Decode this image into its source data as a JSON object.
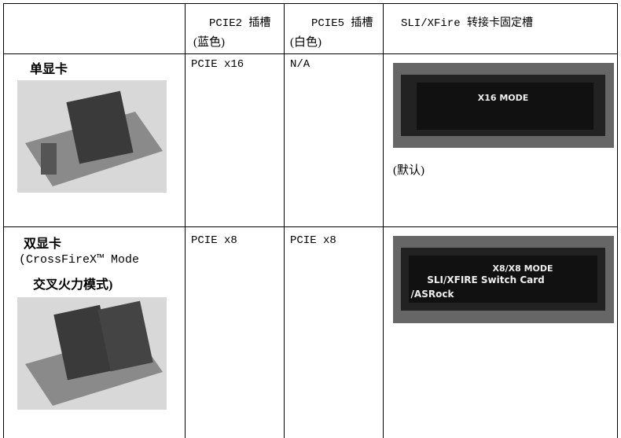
{
  "table": {
    "header": [
      {
        "line1": "PCIE2 插槽",
        "line2": "(蓝色)"
      },
      {
        "line1": "PCIE5 插槽",
        "line2": "(白色)"
      },
      {
        "line1": "SLI/XFire 转接卡固定槽"
      }
    ],
    "rows": [
      {
        "label": [
          "单显卡"
        ],
        "cells": [
          "PCIE x16",
          "N/A",
          "(默认)"
        ]
      },
      {
        "label": [
          "双显卡",
          "(CrossFireX™ Mode",
          "交叉火力模式)"
        ],
        "cells": [
          "PCIE x8",
          "PCIE x8"
        ]
      }
    ]
  },
  "images": [
    {
      "text": "X16 MODE"
    },
    {
      "text": [
        "X8/X8 MODE",
        "SLI/XFIRE Switch Card",
        "/ASRock"
      ]
    }
  ]
}
